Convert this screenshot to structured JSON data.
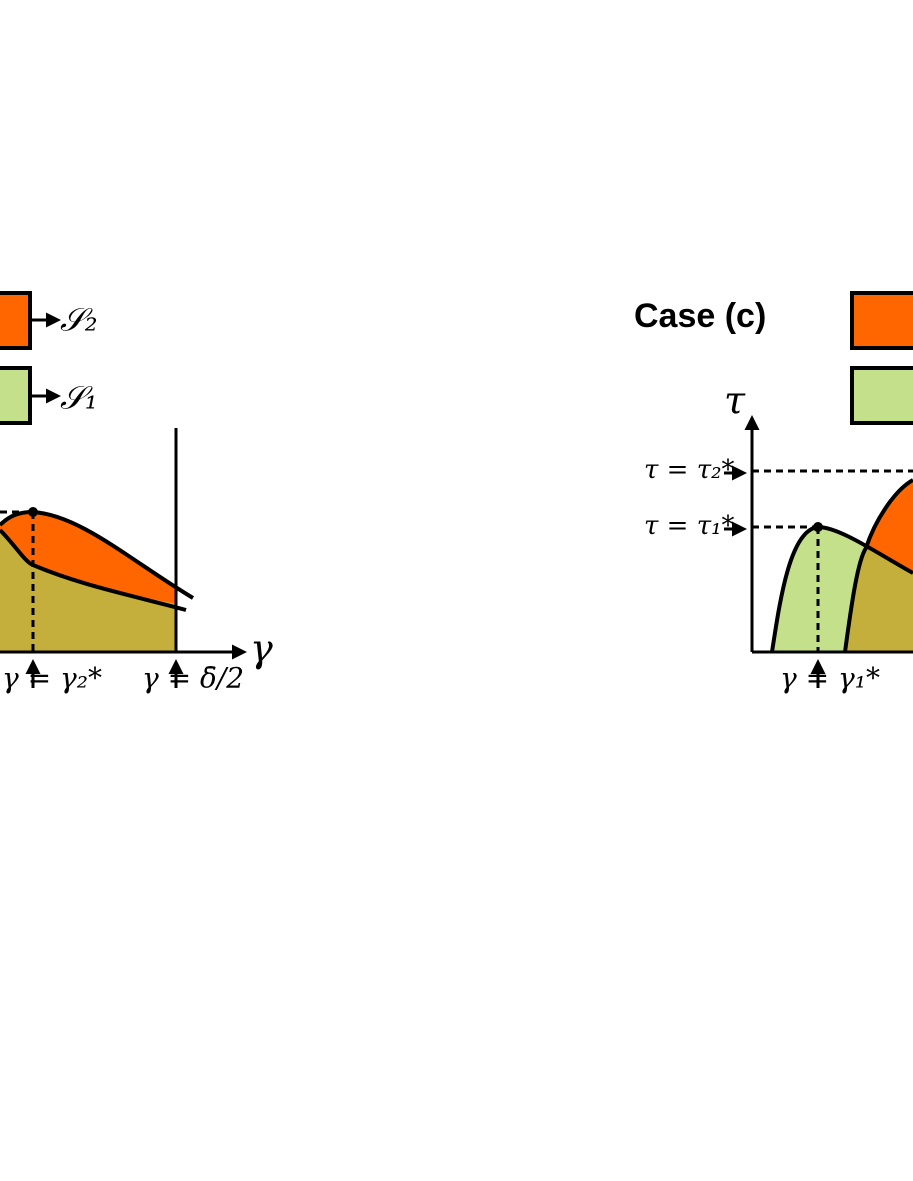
{
  "left_panel": {
    "legend": {
      "orange": "𝒮₂",
      "green": "𝒮₁"
    },
    "x_axis_label": "γ",
    "markers": [
      "γ = γ₂*",
      "γ = δ̄/2"
    ]
  },
  "right_panel": {
    "case_label": "Case (c)",
    "y_axis_label": "τ",
    "levels": [
      "τ = τ₂*",
      "τ = τ₁*"
    ],
    "markers": [
      "γ = γ₁*"
    ]
  }
}
